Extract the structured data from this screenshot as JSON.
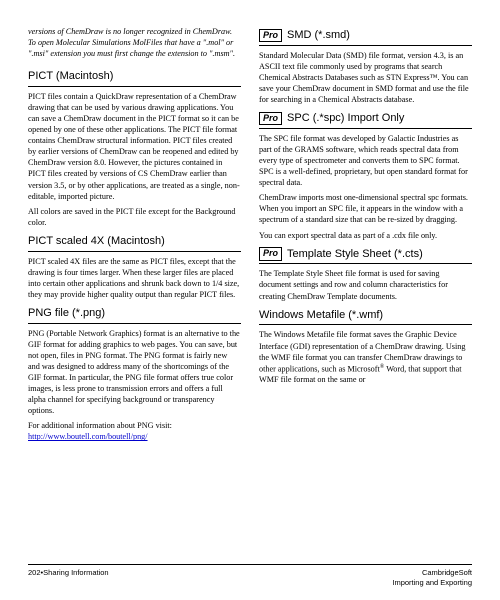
{
  "intro": "versions of ChemDraw is no longer recognized in ChemDraw. To open Molecular Simulations MolFiles that have a \".mol\" or \".msi\" extension you must first change the extension to \".msm\".",
  "left": {
    "pict": {
      "title": "PICT (Macintosh)",
      "p1": "PICT files contain a QuickDraw representation of a ChemDraw drawing that can be used by various drawing applications. You can save a ChemDraw document in the PICT format so it can be opened by one of these other applications. The PICT file format contains ChemDraw structural information. PICT files created by earlier versions of ChemDraw can be reopened and edited by ChemDraw version 8.0. However, the pictures contained in PICT files created by versions of CS ChemDraw earlier than version 3.5, or by other applications, are treated as a single, non-editable, imported picture.",
      "p2": "All colors are saved in the PICT file except for the Background color."
    },
    "pict4x": {
      "title": "PICT scaled 4X (Macintosh)",
      "p1": "PICT scaled 4X files are the same as PICT files, except that the drawing is four times larger. When these larger files are placed into certain other applications and shrunk back down to 1/4 size, they may provide higher quality output than regular PICT files."
    },
    "png": {
      "title": "PNG file (*.png)",
      "p1": "PNG (Portable Network Graphics) format is an alternative to the GIF format for adding graphics to web pages. You can save, but not open, files in PNG format. The PNG format is fairly new and was designed to address many of the shortcomings of the GIF format. In particular, the PNG file format offers true color images, is less prone to transmission errors and offers a full alpha channel for specifying background or transparency options.",
      "p2a": "For additional information about PNG visit: ",
      "link": "http://www.boutell.com/boutell/png/"
    }
  },
  "right": {
    "smd": {
      "badge": "Pro",
      "title": "SMD (*.smd)",
      "p1": "Standard Molecular Data (SMD) file format, version 4.3, is an ASCII text file commonly used by programs that search Chemical Abstracts Databases such as STN Express™. You can save your ChemDraw document in SMD format and use the file for searching in a Chemical Abstracts database."
    },
    "spc": {
      "badge": "Pro",
      "title": "SPC (.*spc) Import Only",
      "p1": "The SPC file format was developed by Galactic Industries as part of the GRAMS software, which reads spectral data from every type of spectrometer and converts them to SPC format. SPC is a well-defined, proprietary, but open standard format for spectral data.",
      "p2": "ChemDraw imports most one-dimensional spectral spc formats. When you import an SPC file, it appears in the window with a spectrum of a standard size that can be re-sized by dragging.",
      "p3": "You can export spectral data as part of a .cdx file only."
    },
    "cts": {
      "badge": "Pro",
      "title": "Template Style Sheet (*.cts)",
      "p1": "The Template Style Sheet file format is used for saving document settings and row and column characteristics for creating ChemDraw Template documents."
    },
    "wmf": {
      "title": "Windows Metafile (*.wmf)",
      "p1a": "The Windows Metafile file format saves the Graphic Device Interface (GDI) representation of a ChemDraw drawing. Using the WMF file format you can transfer ChemDraw drawings to other applications, such as Microsoft",
      "p1b": " Word, that support that WMF file format on the same or"
    }
  },
  "footer": {
    "left": "202•Sharing Information",
    "right1": "CambridgeSoft",
    "right2": "Importing and Exporting"
  }
}
